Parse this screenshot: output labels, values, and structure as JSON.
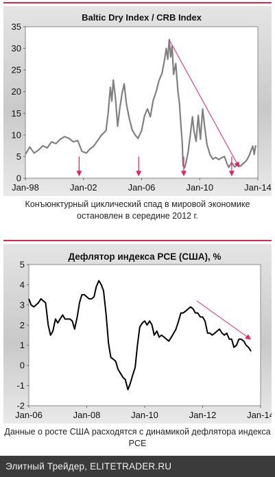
{
  "charts": {
    "top": {
      "caption": "Конъюнктурный циклический спад в мировой экономике остановлен в середине 2012 г.",
      "chart_data": {
        "type": "line",
        "title": "Baltic Dry Index / CRB Index",
        "xlabel": "",
        "ylabel": "",
        "x_tick_labels": [
          "Jan-98",
          "Jan-02",
          "Jan-06",
          "Jan-10",
          "Jan-14"
        ],
        "x_range": [
          1998.0,
          2014.0
        ],
        "ylim": [
          0,
          35
        ],
        "y_ticks": [
          0,
          5,
          10,
          15,
          20,
          25,
          30,
          35
        ],
        "grid": false,
        "line_color": "#808080",
        "series": [
          {
            "points": [
              [
                1998.0,
                5.5
              ],
              [
                1998.3,
                7.2
              ],
              [
                1998.6,
                5.8
              ],
              [
                1998.9,
                6.5
              ],
              [
                1999.2,
                7.5
              ],
              [
                1999.5,
                7.0
              ],
              [
                1999.8,
                8.4
              ],
              [
                2000.1,
                8.0
              ],
              [
                2000.4,
                9.0
              ],
              [
                2000.7,
                9.6
              ],
              [
                2001.0,
                9.2
              ],
              [
                2001.3,
                8.4
              ],
              [
                2001.6,
                8.7
              ],
              [
                2001.9,
                6.2
              ],
              [
                2002.2,
                5.8
              ],
              [
                2002.4,
                6.6
              ],
              [
                2002.7,
                7.4
              ],
              [
                2003.0,
                8.8
              ],
              [
                2003.2,
                9.8
              ],
              [
                2003.4,
                10.5
              ],
              [
                2003.55,
                11.0
              ],
              [
                2003.7,
                15.2
              ],
              [
                2003.85,
                21.0
              ],
              [
                2003.95,
                17.8
              ],
              [
                2004.05,
                22.7
              ],
              [
                2004.2,
                18.5
              ],
              [
                2004.35,
                12.0
              ],
              [
                2004.5,
                16.2
              ],
              [
                2004.65,
                19.5
              ],
              [
                2004.8,
                21.8
              ],
              [
                2004.95,
                17.2
              ],
              [
                2005.15,
                13.8
              ],
              [
                2005.35,
                11.2
              ],
              [
                2005.55,
                10.0
              ],
              [
                2005.75,
                9.2
              ],
              [
                2006.0,
                11.0
              ],
              [
                2006.2,
                14.4
              ],
              [
                2006.4,
                16.0
              ],
              [
                2006.6,
                14.2
              ],
              [
                2006.8,
                18.0
              ],
              [
                2007.0,
                20.0
              ],
              [
                2007.2,
                22.6
              ],
              [
                2007.4,
                24.2
              ],
              [
                2007.55,
                26.8
              ],
              [
                2007.7,
                30.0
              ],
              [
                2007.8,
                27.5
              ],
              [
                2007.9,
                32.0
              ],
              [
                2008.0,
                28.0
              ],
              [
                2008.1,
                30.5
              ],
              [
                2008.2,
                24.0
              ],
              [
                2008.35,
                26.5
              ],
              [
                2008.5,
                20.0
              ],
              [
                2008.6,
                17.5
              ],
              [
                2008.7,
                12.5
              ],
              [
                2008.8,
                8.0
              ],
              [
                2008.85,
                3.0
              ],
              [
                2008.95,
                2.4
              ],
              [
                2009.05,
                3.5
              ],
              [
                2009.2,
                6.0
              ],
              [
                2009.35,
                10.0
              ],
              [
                2009.5,
                14.2
              ],
              [
                2009.6,
                11.0
              ],
              [
                2009.75,
                8.5
              ],
              [
                2009.9,
                14.5
              ],
              [
                2010.05,
                9.0
              ],
              [
                2010.2,
                16.0
              ],
              [
                2010.35,
                11.5
              ],
              [
                2010.5,
                7.8
              ],
              [
                2010.7,
                5.5
              ],
              [
                2010.9,
                4.4
              ],
              [
                2011.1,
                4.8
              ],
              [
                2011.3,
                4.3
              ],
              [
                2011.5,
                4.7
              ],
              [
                2011.7,
                5.0
              ],
              [
                2011.85,
                3.6
              ],
              [
                2012.0,
                2.5
              ],
              [
                2012.2,
                3.6
              ],
              [
                2012.4,
                2.6
              ],
              [
                2012.6,
                3.1
              ],
              [
                2012.8,
                2.8
              ],
              [
                2013.0,
                3.4
              ],
              [
                2013.2,
                4.0
              ],
              [
                2013.4,
                5.2
              ],
              [
                2013.55,
                6.6
              ],
              [
                2013.65,
                7.4
              ],
              [
                2013.75,
                5.5
              ],
              [
                2013.85,
                7.6
              ]
            ]
          }
        ],
        "annotations": {
          "trend_arrow": {
            "from": [
              2007.9,
              32.0
            ],
            "to": [
              2012.7,
              2.6
            ],
            "color": "#e8215f"
          },
          "down_arrows_x": [
            2001.7,
            2005.8,
            2008.9,
            2012.2
          ]
        }
      }
    },
    "bottom": {
      "caption": "Данные о росте США расходятся с динамикой дефлятора индекса PCE",
      "chart_data": {
        "type": "line",
        "title": "Дефлятор индекса PCE (США), %",
        "xlabel": "",
        "ylabel": "",
        "x_tick_labels": [
          "Jan-06",
          "Jan-08",
          "Jan-10",
          "Jan-12",
          "Jan-14"
        ],
        "x_range": [
          2006.0,
          2014.0
        ],
        "ylim": [
          -2,
          5
        ],
        "y_ticks": [
          -2,
          -1,
          0,
          1,
          2,
          3,
          4,
          5
        ],
        "grid": false,
        "line_color": "#000000",
        "series": [
          {
            "points": [
              [
                2006.0,
                3.3
              ],
              [
                2006.08,
                3.0
              ],
              [
                2006.17,
                2.9
              ],
              [
                2006.25,
                3.0
              ],
              [
                2006.33,
                3.1
              ],
              [
                2006.42,
                3.3
              ],
              [
                2006.5,
                3.2
              ],
              [
                2006.58,
                3.1
              ],
              [
                2006.67,
                2.0
              ],
              [
                2006.75,
                1.5
              ],
              [
                2006.83,
                1.7
              ],
              [
                2006.92,
                2.3
              ],
              [
                2007.0,
                2.1
              ],
              [
                2007.08,
                2.3
              ],
              [
                2007.17,
                2.5
              ],
              [
                2007.25,
                2.3
              ],
              [
                2007.33,
                2.3
              ],
              [
                2007.42,
                2.3
              ],
              [
                2007.5,
                2.2
              ],
              [
                2007.58,
                1.8
              ],
              [
                2007.67,
                2.4
              ],
              [
                2007.75,
                3.1
              ],
              [
                2007.83,
                3.5
              ],
              [
                2007.92,
                3.5
              ],
              [
                2008.0,
                3.4
              ],
              [
                2008.08,
                3.3
              ],
              [
                2008.17,
                3.3
              ],
              [
                2008.25,
                3.4
              ],
              [
                2008.33,
                3.9
              ],
              [
                2008.42,
                4.2
              ],
              [
                2008.5,
                4.0
              ],
              [
                2008.58,
                3.7
              ],
              [
                2008.67,
                2.5
              ],
              [
                2008.75,
                1.1
              ],
              [
                2008.83,
                0.4
              ],
              [
                2008.92,
                0.3
              ],
              [
                2009.0,
                0.2
              ],
              [
                2009.08,
                -0.2
              ],
              [
                2009.17,
                -0.4
              ],
              [
                2009.25,
                -0.6
              ],
              [
                2009.33,
                -0.7
              ],
              [
                2009.42,
                -1.2
              ],
              [
                2009.5,
                -0.9
              ],
              [
                2009.58,
                -0.5
              ],
              [
                2009.67,
                -0.1
              ],
              [
                2009.75,
                1.0
              ],
              [
                2009.83,
                1.9
              ],
              [
                2009.92,
                2.1
              ],
              [
                2010.0,
                2.2
              ],
              [
                2010.08,
                2.0
              ],
              [
                2010.17,
                2.2
              ],
              [
                2010.25,
                2.0
              ],
              [
                2010.33,
                1.5
              ],
              [
                2010.42,
                1.7
              ],
              [
                2010.5,
                1.4
              ],
              [
                2010.58,
                1.5
              ],
              [
                2010.67,
                1.4
              ],
              [
                2010.75,
                1.3
              ],
              [
                2010.83,
                1.2
              ],
              [
                2010.92,
                1.4
              ],
              [
                2011.0,
                1.6
              ],
              [
                2011.08,
                1.8
              ],
              [
                2011.17,
                2.2
              ],
              [
                2011.25,
                2.6
              ],
              [
                2011.33,
                2.6
              ],
              [
                2011.42,
                2.7
              ],
              [
                2011.5,
                2.8
              ],
              [
                2011.58,
                2.9
              ],
              [
                2011.67,
                2.8
              ],
              [
                2011.75,
                2.6
              ],
              [
                2011.83,
                2.6
              ],
              [
                2011.92,
                2.4
              ],
              [
                2012.0,
                2.4
              ],
              [
                2012.08,
                2.2
              ],
              [
                2012.17,
                1.6
              ],
              [
                2012.25,
                1.6
              ],
              [
                2012.33,
                1.5
              ],
              [
                2012.42,
                1.6
              ],
              [
                2012.5,
                1.7
              ],
              [
                2012.58,
                1.8
              ],
              [
                2012.67,
                1.6
              ],
              [
                2012.75,
                1.5
              ],
              [
                2012.83,
                1.6
              ],
              [
                2012.92,
                1.3
              ],
              [
                2013.0,
                1.3
              ],
              [
                2013.08,
                0.9
              ],
              [
                2013.17,
                1.0
              ],
              [
                2013.25,
                1.3
              ],
              [
                2013.33,
                1.3
              ],
              [
                2013.42,
                1.2
              ],
              [
                2013.5,
                1.0
              ],
              [
                2013.58,
                0.9
              ],
              [
                2013.67,
                0.7
              ]
            ]
          }
        ],
        "annotations": {
          "trend_arrow": {
            "from": [
              2011.8,
              3.2
            ],
            "to": [
              2013.65,
              1.3
            ],
            "color": "#e8215f"
          }
        }
      }
    }
  },
  "footer": {
    "text": "Элитный Трейдер, ELITETRADER.RU"
  },
  "colors": {
    "accent": "#e8213f",
    "arrow": "#e8215f",
    "footer_bg": "#3b3b3b"
  }
}
